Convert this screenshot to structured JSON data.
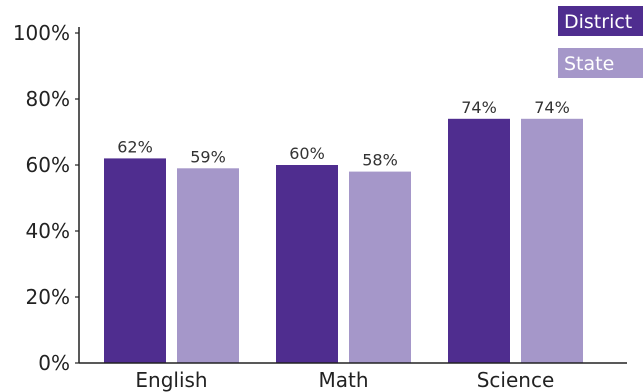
{
  "chart_data": {
    "type": "bar",
    "title": "",
    "xlabel": "",
    "ylabel": "",
    "categories": [
      "English",
      "Math",
      "Science"
    ],
    "series": [
      {
        "name": "District",
        "color": "#4f2d8f",
        "values": [
          62,
          60,
          74
        ]
      },
      {
        "name": "State",
        "color": "#a597c9",
        "values": [
          59,
          58,
          74
        ]
      }
    ],
    "ylim": [
      0,
      100
    ],
    "y_ticks": [
      0,
      20,
      40,
      60,
      80,
      100
    ],
    "y_tick_labels": [
      "0%",
      "20%",
      "40%",
      "60%",
      "80%",
      "100%"
    ],
    "data_labels": [
      [
        "62%",
        "60%",
        "74%"
      ],
      [
        "59%",
        "58%",
        "74%"
      ]
    ],
    "grid": false,
    "legend_position": "top-right"
  }
}
